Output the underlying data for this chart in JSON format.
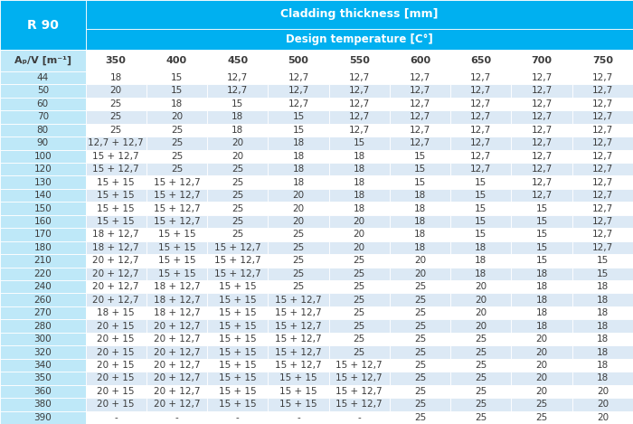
{
  "title1": "Cladding thickness [mm]",
  "title2": "Design temperature [C°]",
  "corner_label": "R 90",
  "col_header": [
    "Aₚ/V [m⁻¹]",
    "350",
    "400",
    "450",
    "500",
    "550",
    "600",
    "650",
    "700",
    "750"
  ],
  "rows": [
    [
      "44",
      "18",
      "15",
      "12,7",
      "12,7",
      "12,7",
      "12,7",
      "12,7",
      "12,7",
      "12,7"
    ],
    [
      "50",
      "20",
      "15",
      "12,7",
      "12,7",
      "12,7",
      "12,7",
      "12,7",
      "12,7",
      "12,7"
    ],
    [
      "60",
      "25",
      "18",
      "15",
      "12,7",
      "12,7",
      "12,7",
      "12,7",
      "12,7",
      "12,7"
    ],
    [
      "70",
      "25",
      "20",
      "18",
      "15",
      "12,7",
      "12,7",
      "12,7",
      "12,7",
      "12,7"
    ],
    [
      "80",
      "25",
      "25",
      "18",
      "15",
      "12,7",
      "12,7",
      "12,7",
      "12,7",
      "12,7"
    ],
    [
      "90",
      "12,7 + 12,7",
      "25",
      "20",
      "18",
      "15",
      "12,7",
      "12,7",
      "12,7",
      "12,7"
    ],
    [
      "100",
      "15 + 12,7",
      "25",
      "20",
      "18",
      "18",
      "15",
      "12,7",
      "12,7",
      "12,7"
    ],
    [
      "120",
      "15 + 12,7",
      "25",
      "25",
      "18",
      "18",
      "15",
      "12,7",
      "12,7",
      "12,7"
    ],
    [
      "130",
      "15 + 15",
      "15 + 12,7",
      "25",
      "18",
      "18",
      "15",
      "15",
      "12,7",
      "12,7"
    ],
    [
      "140",
      "15 + 15",
      "15 + 12,7",
      "25",
      "20",
      "18",
      "18",
      "15",
      "12,7",
      "12,7"
    ],
    [
      "150",
      "15 + 15",
      "15 + 12,7",
      "25",
      "20",
      "18",
      "18",
      "15",
      "15",
      "12,7"
    ],
    [
      "160",
      "15 + 15",
      "15 + 12,7",
      "25",
      "20",
      "20",
      "18",
      "15",
      "15",
      "12,7"
    ],
    [
      "170",
      "18 + 12,7",
      "15 + 15",
      "25",
      "25",
      "20",
      "18",
      "15",
      "15",
      "12,7"
    ],
    [
      "180",
      "18 + 12,7",
      "15 + 15",
      "15 + 12,7",
      "25",
      "20",
      "18",
      "18",
      "15",
      "12,7"
    ],
    [
      "210",
      "20 + 12,7",
      "15 + 15",
      "15 + 12,7",
      "25",
      "25",
      "20",
      "18",
      "15",
      "15"
    ],
    [
      "220",
      "20 + 12,7",
      "15 + 15",
      "15 + 12,7",
      "25",
      "25",
      "20",
      "18",
      "18",
      "15"
    ],
    [
      "240",
      "20 + 12,7",
      "18 + 12,7",
      "15 + 15",
      "25",
      "25",
      "25",
      "20",
      "18",
      "18"
    ],
    [
      "260",
      "20 + 12,7",
      "18 + 12,7",
      "15 + 15",
      "15 + 12,7",
      "25",
      "25",
      "20",
      "18",
      "18"
    ],
    [
      "270",
      "18 + 15",
      "18 + 12,7",
      "15 + 15",
      "15 + 12,7",
      "25",
      "25",
      "20",
      "18",
      "18"
    ],
    [
      "280",
      "20 + 15",
      "20 + 12,7",
      "15 + 15",
      "15 + 12,7",
      "25",
      "25",
      "20",
      "18",
      "18"
    ],
    [
      "300",
      "20 + 15",
      "20 + 12,7",
      "15 + 15",
      "15 + 12,7",
      "25",
      "25",
      "25",
      "20",
      "18"
    ],
    [
      "320",
      "20 + 15",
      "20 + 12,7",
      "15 + 15",
      "15 + 12,7",
      "25",
      "25",
      "25",
      "20",
      "18"
    ],
    [
      "340",
      "20 + 15",
      "20 + 12,7",
      "15 + 15",
      "15 + 12,7",
      "15 + 12,7",
      "25",
      "25",
      "20",
      "18"
    ],
    [
      "350",
      "20 + 15",
      "20 + 12,7",
      "15 + 15",
      "15 + 15",
      "15 + 12,7",
      "25",
      "25",
      "20",
      "18"
    ],
    [
      "360",
      "20 + 15",
      "20 + 12,7",
      "15 + 15",
      "15 + 15",
      "15 + 12,7",
      "25",
      "25",
      "20",
      "20"
    ],
    [
      "380",
      "20 + 15",
      "20 + 12,7",
      "15 + 15",
      "15 + 15",
      "15 + 12,7",
      "25",
      "25",
      "25",
      "20"
    ],
    [
      "390",
      "-",
      "-",
      "-",
      "-",
      "-",
      "25",
      "25",
      "25",
      "20"
    ]
  ],
  "cyan_header_bg": "#00b0f0",
  "light_blue_bg": "#bee8f8",
  "white_bg": "#ffffff",
  "alt_row_bg": "#dce9f5",
  "header_text_color": "#ffffff",
  "data_text_color": "#3c3c3c",
  "col0_text_color": "#3c3c3c",
  "font_size_header": 9,
  "font_size_subheader": 8.5,
  "font_size_col_header": 8,
  "font_size_data": 7.5,
  "font_size_corner": 10
}
